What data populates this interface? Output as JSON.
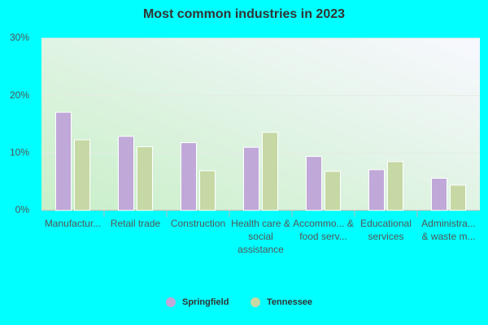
{
  "chart_data": {
    "type": "bar",
    "title": "Most common industries in 2023",
    "categories": [
      "Manufactur...",
      "Retail trade",
      "Construction",
      "Health care & social assistance",
      "Accommo... & food serv...",
      "Educational services",
      "Administra... & waste m..."
    ],
    "series": [
      {
        "name": "Springfield",
        "color": "#c0a8d8",
        "values": [
          17.1,
          12.9,
          11.8,
          11.0,
          9.4,
          7.1,
          5.6
        ]
      },
      {
        "name": "Tennessee",
        "color": "#c6d8a4",
        "values": [
          12.3,
          11.1,
          6.9,
          13.6,
          6.8,
          8.5,
          4.4
        ]
      }
    ],
    "ylim": [
      0,
      30
    ],
    "yticks": [
      {
        "value": 0,
        "label": "0%"
      },
      {
        "value": 10,
        "label": "10%"
      },
      {
        "value": 20,
        "label": "20%"
      },
      {
        "value": 30,
        "label": "30%"
      }
    ],
    "grid": true
  }
}
